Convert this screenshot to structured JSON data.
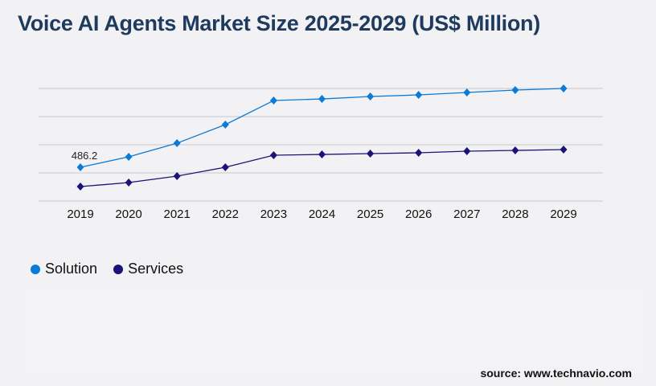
{
  "title": "Voice AI Agents Market Size 2025-2029 (US$ Million)",
  "source": "source: www.technavio.com",
  "chart_data": {
    "type": "line",
    "title": "Voice AI Agents Market Size 2025-2029 (US$ Million)",
    "x": [
      "2019",
      "2020",
      "2021",
      "2022",
      "2023",
      "2024",
      "2025",
      "2026",
      "2027",
      "2028",
      "2029"
    ],
    "ylim": [
      0,
      1621
    ],
    "grid": true,
    "legend": "bottom-left",
    "series": [
      {
        "name": "Solution",
        "color": "#0a7bd6",
        "values": [
          486.2,
          637,
          833,
          1100,
          1447,
          1470,
          1505,
          1528,
          1563,
          1598,
          1621
        ]
      },
      {
        "name": "Services",
        "color": "#1c137a",
        "values": [
          208,
          266,
          359,
          486,
          660,
          671,
          683,
          695,
          718,
          729,
          741
        ]
      }
    ],
    "annotations": [
      {
        "series": "Solution",
        "x": "2019",
        "label": "486.2"
      }
    ]
  }
}
